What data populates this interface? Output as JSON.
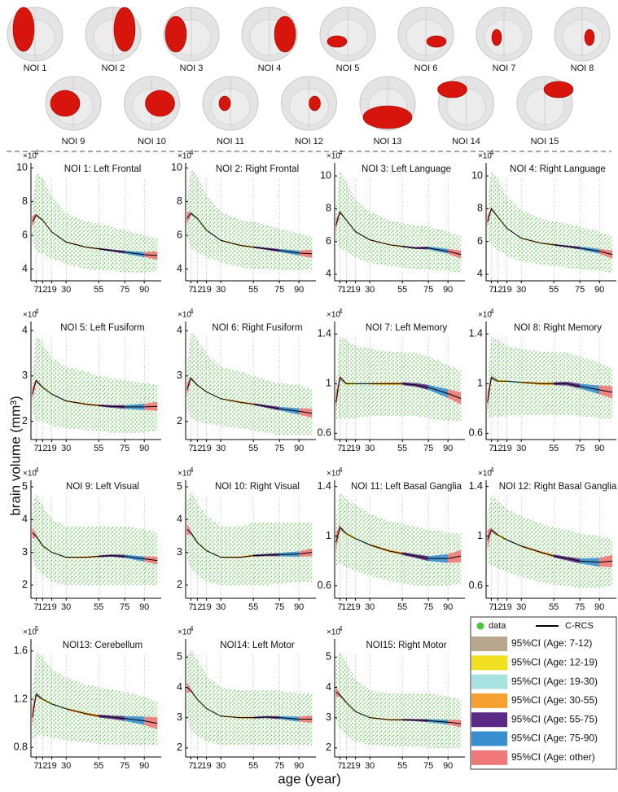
{
  "regions": {
    "labels": [
      "NOI 1",
      "NOI 2",
      "NOI 3",
      "NOI 4",
      "NOI 5",
      "NOI 6",
      "NOI 7",
      "NOI 8",
      "NOI 9",
      "NOI 10",
      "NOI 11",
      "NOI 12",
      "NOI 13",
      "NOI 14",
      "NOI 15"
    ]
  },
  "chart_data": {
    "type": "scatter",
    "y_label": "brain volume (mm³)",
    "x_label": "age (year)",
    "x": [
      4,
      7,
      12,
      19,
      30,
      45,
      55,
      65,
      75,
      90,
      100
    ],
    "xlim": [
      3,
      103
    ],
    "xticks": [
      7,
      12,
      19,
      30,
      55,
      75,
      90
    ],
    "legend": {
      "data": "data",
      "fit": "C-RCS",
      "data_color": "#4cc43c",
      "fit_color": "#000000",
      "ci": [
        {
          "label": "95%CI (Age: 7-12)",
          "color": "#b8a78c"
        },
        {
          "label": "95%CI (Age: 12-19)",
          "color": "#f0e020"
        },
        {
          "label": "95%CI (Age: 19-30)",
          "color": "#a8e2e0"
        },
        {
          "label": "95%CI (Age: 30-55)",
          "color": "#f5a030"
        },
        {
          "label": "95%CI (Age: 55-75)",
          "color": "#5b2a86"
        },
        {
          "label": "95%CI (Age: 75-90)",
          "color": "#3a8fd0"
        },
        {
          "label": "95%CI (Age: other)",
          "color": "#f07878"
        }
      ]
    },
    "panels": [
      {
        "title": "NOI 1: Left Frontal",
        "multiplier": "×10",
        "power": 4,
        "ylim": [
          3.3,
          10.3
        ],
        "yticks": [
          4,
          6,
          8,
          10
        ],
        "fit": [
          6.8,
          7.2,
          6.9,
          6.2,
          5.6,
          5.3,
          5.2,
          5.1,
          5.0,
          4.85,
          4.8
        ],
        "ci": [
          0.35,
          0.1,
          0.05,
          0.04,
          0.04,
          0.04,
          0.05,
          0.06,
          0.09,
          0.15,
          0.25
        ],
        "data_low": [
          5.8,
          5.0,
          4.9,
          4.6,
          4.3,
          4.0,
          3.9,
          3.9,
          3.8,
          3.8,
          3.9
        ],
        "data_high": [
          7.8,
          9.8,
          9.4,
          8.3,
          7.3,
          6.8,
          6.7,
          6.5,
          6.3,
          6.0,
          5.8
        ]
      },
      {
        "title": "NOI 2: Right Frontal",
        "multiplier": "×10",
        "power": 4,
        "ylim": [
          3.3,
          10.3
        ],
        "yticks": [
          4,
          6,
          8,
          10
        ],
        "fit": [
          7.0,
          7.3,
          7.0,
          6.3,
          5.7,
          5.4,
          5.3,
          5.2,
          5.1,
          4.95,
          4.9
        ],
        "ci": [
          0.35,
          0.1,
          0.05,
          0.04,
          0.04,
          0.04,
          0.05,
          0.06,
          0.09,
          0.15,
          0.25
        ],
        "data_low": [
          6.0,
          5.2,
          5.0,
          4.7,
          4.4,
          4.1,
          4.0,
          4.0,
          3.9,
          3.9,
          4.0
        ],
        "data_high": [
          8.0,
          10.0,
          9.5,
          8.4,
          7.4,
          6.9,
          6.8,
          6.6,
          6.4,
          6.1,
          5.9
        ]
      },
      {
        "title": "NOI 3: Left Language",
        "multiplier": "×10",
        "power": 4,
        "ylim": [
          3.6,
          10.8
        ],
        "yticks": [
          4,
          6,
          8,
          10
        ],
        "fit": [
          7.0,
          7.8,
          7.3,
          6.6,
          6.1,
          5.8,
          5.7,
          5.6,
          5.6,
          5.4,
          5.2
        ],
        "ci": [
          0.35,
          0.1,
          0.05,
          0.04,
          0.04,
          0.04,
          0.05,
          0.06,
          0.09,
          0.15,
          0.25
        ],
        "data_low": [
          6.0,
          5.6,
          5.4,
          5.0,
          4.7,
          4.5,
          4.4,
          4.3,
          4.3,
          4.2,
          4.1
        ],
        "data_high": [
          8.0,
          10.3,
          9.6,
          8.5,
          7.8,
          7.3,
          7.1,
          7.0,
          6.9,
          6.6,
          6.3
        ]
      },
      {
        "title": "NOI 4: Right Language",
        "multiplier": "×10",
        "power": 4,
        "ylim": [
          3.6,
          10.8
        ],
        "yticks": [
          4,
          6,
          8,
          10
        ],
        "fit": [
          7.2,
          8.0,
          7.5,
          6.8,
          6.2,
          5.9,
          5.8,
          5.7,
          5.6,
          5.4,
          5.2
        ],
        "ci": [
          0.35,
          0.1,
          0.05,
          0.04,
          0.04,
          0.04,
          0.05,
          0.06,
          0.09,
          0.15,
          0.25
        ],
        "data_low": [
          6.2,
          5.8,
          5.5,
          5.1,
          4.8,
          4.6,
          4.5,
          4.4,
          4.3,
          4.2,
          4.1
        ],
        "data_high": [
          8.2,
          10.4,
          9.7,
          8.7,
          7.9,
          7.4,
          7.2,
          7.1,
          6.9,
          6.6,
          6.3
        ]
      },
      {
        "title": "NOI 5: Left Fusiform",
        "multiplier": "×10",
        "power": 4,
        "ylim": [
          1.6,
          4.2
        ],
        "yticks": [
          2,
          3,
          4
        ],
        "fit": [
          2.6,
          2.9,
          2.75,
          2.6,
          2.45,
          2.38,
          2.35,
          2.33,
          2.32,
          2.32,
          2.33
        ],
        "ci": [
          0.15,
          0.04,
          0.02,
          0.015,
          0.015,
          0.02,
          0.02,
          0.03,
          0.04,
          0.07,
          0.1
        ],
        "data_low": [
          2.2,
          2.0,
          2.0,
          1.9,
          1.85,
          1.8,
          1.8,
          1.75,
          1.75,
          1.75,
          1.8
        ],
        "data_high": [
          3.0,
          3.9,
          3.7,
          3.4,
          3.2,
          3.1,
          3.0,
          2.95,
          2.9,
          2.85,
          2.8
        ]
      },
      {
        "title": "NOI 6: Right Fusiform",
        "multiplier": "×10",
        "power": 4,
        "ylim": [
          1.6,
          4.2
        ],
        "yticks": [
          2,
          3,
          4
        ],
        "fit": [
          2.7,
          2.95,
          2.8,
          2.65,
          2.5,
          2.42,
          2.38,
          2.33,
          2.28,
          2.22,
          2.18
        ],
        "ci": [
          0.15,
          0.04,
          0.02,
          0.015,
          0.015,
          0.02,
          0.02,
          0.03,
          0.04,
          0.07,
          0.1
        ],
        "data_low": [
          2.3,
          2.05,
          2.0,
          1.95,
          1.9,
          1.85,
          1.8,
          1.75,
          1.7,
          1.7,
          1.7
        ],
        "data_high": [
          3.1,
          4.0,
          3.8,
          3.5,
          3.2,
          3.1,
          3.0,
          2.9,
          2.85,
          2.8,
          2.7
        ]
      },
      {
        "title": "NOI 7: Left Memory",
        "multiplier": "×10",
        "power": 4,
        "ylim": [
          0.55,
          1.5
        ],
        "yticks": [
          0.6,
          1,
          1.4
        ],
        "fit": [
          0.85,
          1.05,
          1.0,
          1.0,
          1.0,
          1.0,
          1.0,
          0.99,
          0.97,
          0.92,
          0.88
        ],
        "ci": [
          0.08,
          0.02,
          0.01,
          0.008,
          0.008,
          0.01,
          0.012,
          0.015,
          0.02,
          0.035,
          0.05
        ],
        "data_low": [
          0.7,
          0.72,
          0.72,
          0.72,
          0.74,
          0.74,
          0.74,
          0.74,
          0.72,
          0.7,
          0.7
        ],
        "data_high": [
          1.0,
          1.38,
          1.35,
          1.3,
          1.28,
          1.26,
          1.25,
          1.25,
          1.22,
          1.15,
          1.1
        ]
      },
      {
        "title": "NOI 8: Right Memory",
        "multiplier": "×10",
        "power": 4,
        "ylim": [
          0.55,
          1.5
        ],
        "yticks": [
          0.6,
          1,
          1.4
        ],
        "fit": [
          0.85,
          1.05,
          1.02,
          1.02,
          1.01,
          1.0,
          1.0,
          1.0,
          0.98,
          0.95,
          0.93
        ],
        "ci": [
          0.08,
          0.02,
          0.01,
          0.008,
          0.008,
          0.01,
          0.012,
          0.015,
          0.02,
          0.035,
          0.05
        ],
        "data_low": [
          0.7,
          0.73,
          0.73,
          0.74,
          0.75,
          0.75,
          0.75,
          0.75,
          0.74,
          0.72,
          0.72
        ],
        "data_high": [
          1.0,
          1.38,
          1.35,
          1.3,
          1.28,
          1.26,
          1.25,
          1.25,
          1.22,
          1.17,
          1.12
        ]
      },
      {
        "title": "NOI 9: Left Visual",
        "multiplier": "×10",
        "power": 4,
        "ylim": [
          1.6,
          5.2
        ],
        "yticks": [
          2,
          3,
          4,
          5
        ],
        "fit": [
          3.6,
          3.5,
          3.2,
          3.0,
          2.85,
          2.85,
          2.88,
          2.9,
          2.88,
          2.8,
          2.75
        ],
        "ci": [
          0.18,
          0.05,
          0.025,
          0.02,
          0.02,
          0.025,
          0.03,
          0.035,
          0.05,
          0.08,
          0.12
        ],
        "data_low": [
          2.8,
          2.5,
          2.3,
          2.1,
          2.0,
          2.0,
          2.0,
          2.0,
          2.0,
          2.0,
          2.0
        ],
        "data_high": [
          4.4,
          4.8,
          4.4,
          4.0,
          3.8,
          3.8,
          3.8,
          3.8,
          3.8,
          3.7,
          3.6
        ]
      },
      {
        "title": "NOI 10: Right Visual",
        "multiplier": "×10",
        "power": 4,
        "ylim": [
          1.6,
          5.2
        ],
        "yticks": [
          2,
          3,
          4,
          5
        ],
        "fit": [
          3.7,
          3.6,
          3.3,
          3.05,
          2.85,
          2.85,
          2.9,
          2.92,
          2.93,
          2.95,
          3.0
        ],
        "ci": [
          0.18,
          0.05,
          0.025,
          0.02,
          0.02,
          0.025,
          0.03,
          0.035,
          0.05,
          0.08,
          0.12
        ],
        "data_low": [
          2.8,
          2.5,
          2.3,
          2.1,
          2.0,
          2.0,
          2.0,
          2.0,
          2.05,
          2.1,
          2.1
        ],
        "data_high": [
          4.5,
          4.9,
          4.5,
          4.1,
          3.8,
          3.8,
          3.9,
          3.9,
          3.9,
          3.9,
          3.9
        ]
      },
      {
        "title": "NOI 11: Left Basal Ganglia",
        "multiplier": "×10",
        "power": 4,
        "ylim": [
          0.5,
          1.45
        ],
        "yticks": [
          0.6,
          1,
          1.4
        ],
        "fit": [
          0.95,
          1.07,
          1.02,
          0.98,
          0.93,
          0.88,
          0.86,
          0.84,
          0.82,
          0.82,
          0.84
        ],
        "ci": [
          0.08,
          0.02,
          0.01,
          0.008,
          0.008,
          0.01,
          0.012,
          0.015,
          0.02,
          0.035,
          0.05
        ],
        "data_low": [
          0.75,
          0.78,
          0.75,
          0.72,
          0.68,
          0.64,
          0.62,
          0.6,
          0.6,
          0.6,
          0.62
        ],
        "data_high": [
          1.15,
          1.35,
          1.3,
          1.25,
          1.18,
          1.12,
          1.1,
          1.08,
          1.05,
          1.03,
          1.02
        ]
      },
      {
        "title": "NOI 12: Right Basal Ganglia",
        "multiplier": "×10",
        "power": 4,
        "ylim": [
          0.5,
          1.45
        ],
        "yticks": [
          0.6,
          1,
          1.4
        ],
        "fit": [
          0.97,
          1.05,
          1.01,
          0.97,
          0.92,
          0.87,
          0.84,
          0.82,
          0.8,
          0.79,
          0.8
        ],
        "ci": [
          0.08,
          0.02,
          0.01,
          0.008,
          0.008,
          0.01,
          0.012,
          0.015,
          0.02,
          0.035,
          0.05
        ],
        "data_low": [
          0.77,
          0.77,
          0.74,
          0.71,
          0.67,
          0.63,
          0.61,
          0.6,
          0.58,
          0.58,
          0.6
        ],
        "data_high": [
          1.17,
          1.33,
          1.28,
          1.22,
          1.16,
          1.1,
          1.07,
          1.05,
          1.02,
          1.0,
          0.98
        ]
      },
      {
        "title": "NOI13: Cerebellum",
        "multiplier": "×10",
        "power": 5,
        "ylim": [
          0.72,
          1.7
        ],
        "yticks": [
          0.8,
          1.2,
          1.6
        ],
        "fit": [
          1.05,
          1.24,
          1.2,
          1.16,
          1.12,
          1.08,
          1.06,
          1.05,
          1.04,
          1.02,
          1.0
        ],
        "ci": [
          0.08,
          0.02,
          0.01,
          0.008,
          0.008,
          0.01,
          0.012,
          0.015,
          0.02,
          0.035,
          0.05
        ],
        "data_low": [
          0.85,
          0.9,
          0.9,
          0.88,
          0.86,
          0.84,
          0.83,
          0.82,
          0.82,
          0.82,
          0.82
        ],
        "data_high": [
          1.25,
          1.6,
          1.55,
          1.45,
          1.38,
          1.32,
          1.3,
          1.28,
          1.26,
          1.22,
          1.18
        ]
      },
      {
        "title": "NOI14: Left Motor",
        "multiplier": "×10",
        "power": 4,
        "ylim": [
          1.7,
          5.6
        ],
        "yticks": [
          2,
          3,
          4,
          5
        ],
        "fit": [
          4.0,
          3.9,
          3.6,
          3.3,
          3.05,
          3.0,
          3.0,
          3.02,
          3.0,
          2.95,
          2.95
        ],
        "ci": [
          0.18,
          0.05,
          0.025,
          0.02,
          0.02,
          0.025,
          0.03,
          0.035,
          0.05,
          0.08,
          0.12
        ],
        "data_low": [
          3.0,
          2.6,
          2.4,
          2.2,
          2.1,
          2.1,
          2.1,
          2.1,
          2.1,
          2.1,
          2.1
        ],
        "data_high": [
          5.0,
          5.3,
          4.9,
          4.4,
          4.0,
          3.9,
          3.9,
          3.9,
          3.9,
          3.8,
          3.8
        ]
      },
      {
        "title": "NOI15: Right Motor",
        "multiplier": "×10",
        "power": 4,
        "ylim": [
          1.7,
          5.6
        ],
        "yticks": [
          2,
          3,
          4,
          5
        ],
        "fit": [
          3.85,
          3.75,
          3.5,
          3.2,
          3.0,
          2.93,
          2.93,
          2.92,
          2.9,
          2.85,
          2.8
        ],
        "ci": [
          0.18,
          0.05,
          0.025,
          0.02,
          0.02,
          0.025,
          0.03,
          0.035,
          0.05,
          0.08,
          0.12
        ],
        "data_low": [
          2.9,
          2.6,
          2.4,
          2.2,
          2.1,
          2.05,
          2.05,
          2.05,
          2.0,
          2.0,
          2.0
        ],
        "data_high": [
          4.8,
          5.2,
          4.8,
          4.3,
          3.9,
          3.8,
          3.8,
          3.8,
          3.8,
          3.7,
          3.6
        ]
      }
    ]
  }
}
